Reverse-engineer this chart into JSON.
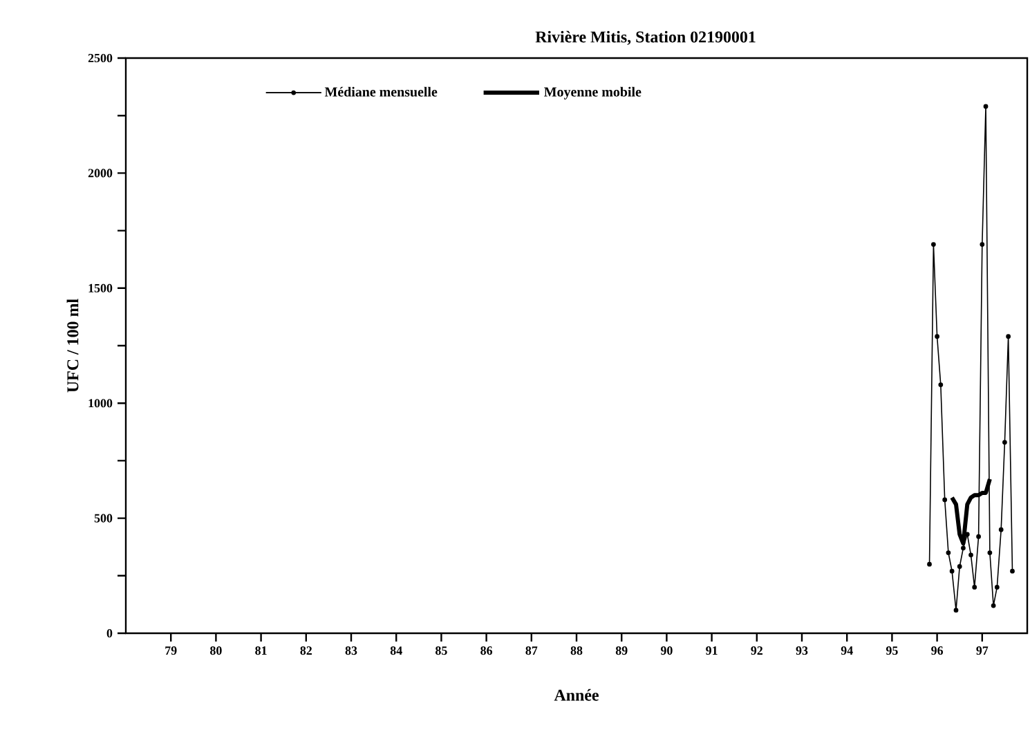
{
  "chart_data": {
    "type": "line",
    "title": "Rivière Mitis, Station 02190001",
    "xlabel": "Année",
    "ylabel": "UFC / 100 ml",
    "xlim": [
      78,
      98
    ],
    "xticks": [
      79,
      80,
      81,
      82,
      83,
      84,
      85,
      86,
      87,
      88,
      89,
      90,
      91,
      92,
      93,
      94,
      95,
      96,
      97
    ],
    "ylim": [
      0,
      2500
    ],
    "yticks": [
      0,
      {
        "value": 250,
        "label": null
      },
      500,
      {
        "value": 750,
        "label": null
      },
      1000,
      {
        "value": 1250,
        "label": null
      },
      1500,
      {
        "value": 1750,
        "label": null
      },
      2000,
      {
        "value": 2250,
        "label": null
      },
      2500
    ],
    "legend": "top",
    "grid": false,
    "series": [
      {
        "name": "Médiane mensuelle",
        "color": "#000000",
        "marker": "circle",
        "x": [
          95.83,
          95.92,
          96.0,
          96.08,
          96.17,
          96.25,
          96.33,
          96.42,
          96.5,
          96.58,
          96.67,
          96.75,
          96.83,
          96.92,
          97.0,
          97.08,
          97.17,
          97.25,
          97.33,
          97.42,
          97.5,
          97.58,
          97.67
        ],
        "values": [
          300,
          1690,
          1290,
          1080,
          580,
          350,
          270,
          100,
          290,
          370,
          430,
          340,
          200,
          420,
          1690,
          2290,
          350,
          120,
          200,
          450,
          830,
          1290,
          270
        ]
      },
      {
        "name": "Moyenne mobile",
        "color": "#000000",
        "marker": "none",
        "x": [
          96.33,
          96.42,
          96.5,
          96.58,
          96.67,
          96.75,
          96.83,
          96.92,
          97.0,
          97.08,
          97.17
        ],
        "values": [
          590,
          560,
          430,
          390,
          560,
          590,
          600,
          600,
          610,
          610,
          670
        ]
      }
    ]
  }
}
